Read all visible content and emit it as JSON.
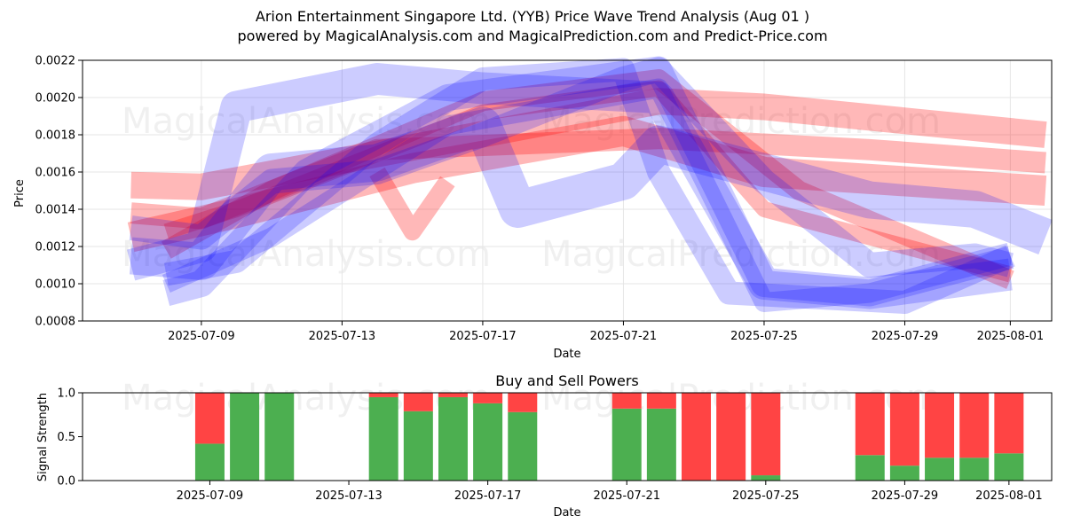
{
  "header": {
    "title_line1": "Arion Entertainment Singapore Ltd. (YYB) Price Wave Trend Analysis (Aug 01 )",
    "title_line2": "powered by MagicalAnalysis.com and MagicalPrediction.com and Predict-Price.com"
  },
  "watermarks": [
    "MagicalAnalysis.com",
    "MagicalPrediction.com"
  ],
  "colors": {
    "red_band": "#ff0000",
    "blue_band": "#0000ff",
    "buy": "#4caf50",
    "sell": "#ff4444"
  },
  "chart_data": [
    {
      "type": "area",
      "title": "",
      "xlabel": "Date",
      "ylabel": "Price",
      "xlim": [
        "2025-07-06",
        "2025-08-02"
      ],
      "ylim": [
        0.0008,
        0.0022
      ],
      "x_ticks": [
        "2025-07-09",
        "2025-07-13",
        "2025-07-17",
        "2025-07-21",
        "2025-07-25",
        "2025-07-29",
        "2025-08-01"
      ],
      "y_ticks": [
        0.0008,
        0.001,
        0.0012,
        0.0014,
        0.0016,
        0.0018,
        0.002,
        0.0022
      ],
      "y_tick_labels": [
        "0.0008",
        "0.0010",
        "0.0012",
        "0.0014",
        "0.0016",
        "0.0018",
        "0.0020",
        "0.0022"
      ],
      "grid": true,
      "series": [
        {
          "color": "red",
          "x": [
            "2025-07-07",
            "2025-07-09",
            "2025-07-22",
            "2025-07-25",
            "2025-08-02"
          ],
          "y": [
            0.00153,
            0.00152,
            0.00198,
            0.00195,
            0.0018
          ]
        },
        {
          "color": "red",
          "x": [
            "2025-07-07",
            "2025-07-09",
            "2025-07-14",
            "2025-07-22",
            "2025-07-28",
            "2025-08-02"
          ],
          "y": [
            0.00138,
            0.00135,
            0.00172,
            0.00178,
            0.00172,
            0.00165
          ]
        },
        {
          "color": "red",
          "x": [
            "2025-07-07",
            "2025-07-10",
            "2025-07-15",
            "2025-07-21",
            "2025-07-25",
            "2025-08-02"
          ],
          "y": [
            0.00125,
            0.00138,
            0.00162,
            0.00182,
            0.0016,
            0.0015
          ]
        },
        {
          "color": "red",
          "x": [
            "2025-07-08",
            "2025-07-10",
            "2025-07-17",
            "2025-07-22",
            "2025-07-25",
            "2025-07-28",
            "2025-08-01"
          ],
          "y": [
            0.00128,
            0.0014,
            0.00192,
            0.00205,
            0.0014,
            0.00125,
            0.00105
          ]
        },
        {
          "color": "red",
          "x": [
            "2025-07-08",
            "2025-07-11",
            "2025-07-17",
            "2025-07-22",
            "2025-07-26",
            "2025-08-01"
          ],
          "y": [
            0.00118,
            0.0015,
            0.00198,
            0.0021,
            0.0015,
            0.00102
          ]
        },
        {
          "color": "red",
          "x": [
            "2025-07-14",
            "2025-07-15",
            "2025-07-16"
          ],
          "y": [
            0.0016,
            0.00128,
            0.00155
          ]
        },
        {
          "color": "blue",
          "x": [
            "2025-07-07",
            "2025-07-09",
            "2025-07-11",
            "2025-07-14",
            "2025-07-17",
            "2025-07-18",
            "2025-07-21",
            "2025-07-22",
            "2025-07-28",
            "2025-07-31",
            "2025-08-02"
          ],
          "y": [
            0.00115,
            0.00112,
            0.0016,
            0.00165,
            0.00185,
            0.0014,
            0.00155,
            0.00175,
            0.00145,
            0.0014,
            0.00125
          ]
        },
        {
          "color": "blue",
          "x": [
            "2025-07-07",
            "2025-07-09",
            "2025-07-11",
            "2025-07-14",
            "2025-07-17",
            "2025-07-21",
            "2025-07-22",
            "2025-07-25",
            "2025-07-28",
            "2025-07-31",
            "2025-08-01"
          ],
          "y": [
            0.0013,
            0.00125,
            0.00155,
            0.0016,
            0.0018,
            0.0021,
            0.00215,
            0.00155,
            0.0011,
            0.00115,
            0.0011
          ]
        },
        {
          "color": "blue",
          "x": [
            "2025-07-07",
            "2025-07-09",
            "2025-07-10",
            "2025-07-14",
            "2025-07-17",
            "2025-07-22",
            "2025-07-25",
            "2025-07-28",
            "2025-08-01"
          ],
          "y": [
            0.0011,
            0.0012,
            0.00195,
            0.0021,
            0.00205,
            0.002,
            0.001,
            0.00095,
            0.00105
          ]
        },
        {
          "color": "blue",
          "x": [
            "2025-07-08",
            "2025-07-10",
            "2025-07-14",
            "2025-07-17",
            "2025-07-21",
            "2025-07-22",
            "2025-07-24",
            "2025-07-29",
            "2025-08-01"
          ],
          "y": [
            0.00105,
            0.00112,
            0.00175,
            0.0021,
            0.00215,
            0.0016,
            0.00095,
            0.0009,
            0.00115
          ]
        },
        {
          "color": "blue",
          "x": [
            "2025-07-08",
            "2025-07-09",
            "2025-07-12",
            "2025-07-16",
            "2025-07-22",
            "2025-07-25",
            "2025-07-28",
            "2025-08-01"
          ],
          "y": [
            0.00095,
            0.001,
            0.0016,
            0.002,
            0.00215,
            0.001,
            0.00095,
            0.00115
          ]
        },
        {
          "color": "blue",
          "x": [
            "2025-07-08",
            "2025-07-11",
            "2025-07-16",
            "2025-07-22",
            "2025-07-25",
            "2025-07-28",
            "2025-08-01"
          ],
          "y": [
            0.001,
            0.00125,
            0.00185,
            0.00205,
            0.0009,
            0.00095,
            0.00115
          ]
        }
      ]
    },
    {
      "type": "bar",
      "title": "Buy and Sell Powers",
      "xlabel": "Date",
      "ylabel": "Signal Strength",
      "xlim": [
        "2025-07-06",
        "2025-08-02"
      ],
      "ylim": [
        0,
        1.0
      ],
      "x_ticks": [
        "2025-07-09",
        "2025-07-13",
        "2025-07-17",
        "2025-07-21",
        "2025-07-25",
        "2025-07-29",
        "2025-08-01"
      ],
      "y_ticks": [
        0,
        0.5,
        1.0
      ],
      "y_tick_labels": [
        "0.0",
        "0.5",
        "1.0"
      ],
      "stacked": true,
      "x": [
        "2025-07-09",
        "2025-07-10",
        "2025-07-11",
        "2025-07-14",
        "2025-07-15",
        "2025-07-16",
        "2025-07-17",
        "2025-07-18",
        "2025-07-21",
        "2025-07-22",
        "2025-07-23",
        "2025-07-24",
        "2025-07-25",
        "2025-07-28",
        "2025-07-29",
        "2025-07-30",
        "2025-07-31",
        "2025-08-01"
      ],
      "series": [
        {
          "color": "green",
          "values": [
            0.42,
            1.0,
            1.0,
            0.95,
            0.79,
            0.95,
            0.88,
            0.78,
            0.82,
            0.82,
            0.0,
            0.0,
            0.06,
            0.29,
            0.17,
            0.26,
            0.26,
            0.31
          ]
        },
        {
          "color": "red",
          "values": [
            0.58,
            0.0,
            0.0,
            0.05,
            0.21,
            0.05,
            0.12,
            0.22,
            0.18,
            0.18,
            1.0,
            1.0,
            0.94,
            0.71,
            0.83,
            0.74,
            0.74,
            0.69
          ]
        }
      ]
    }
  ]
}
